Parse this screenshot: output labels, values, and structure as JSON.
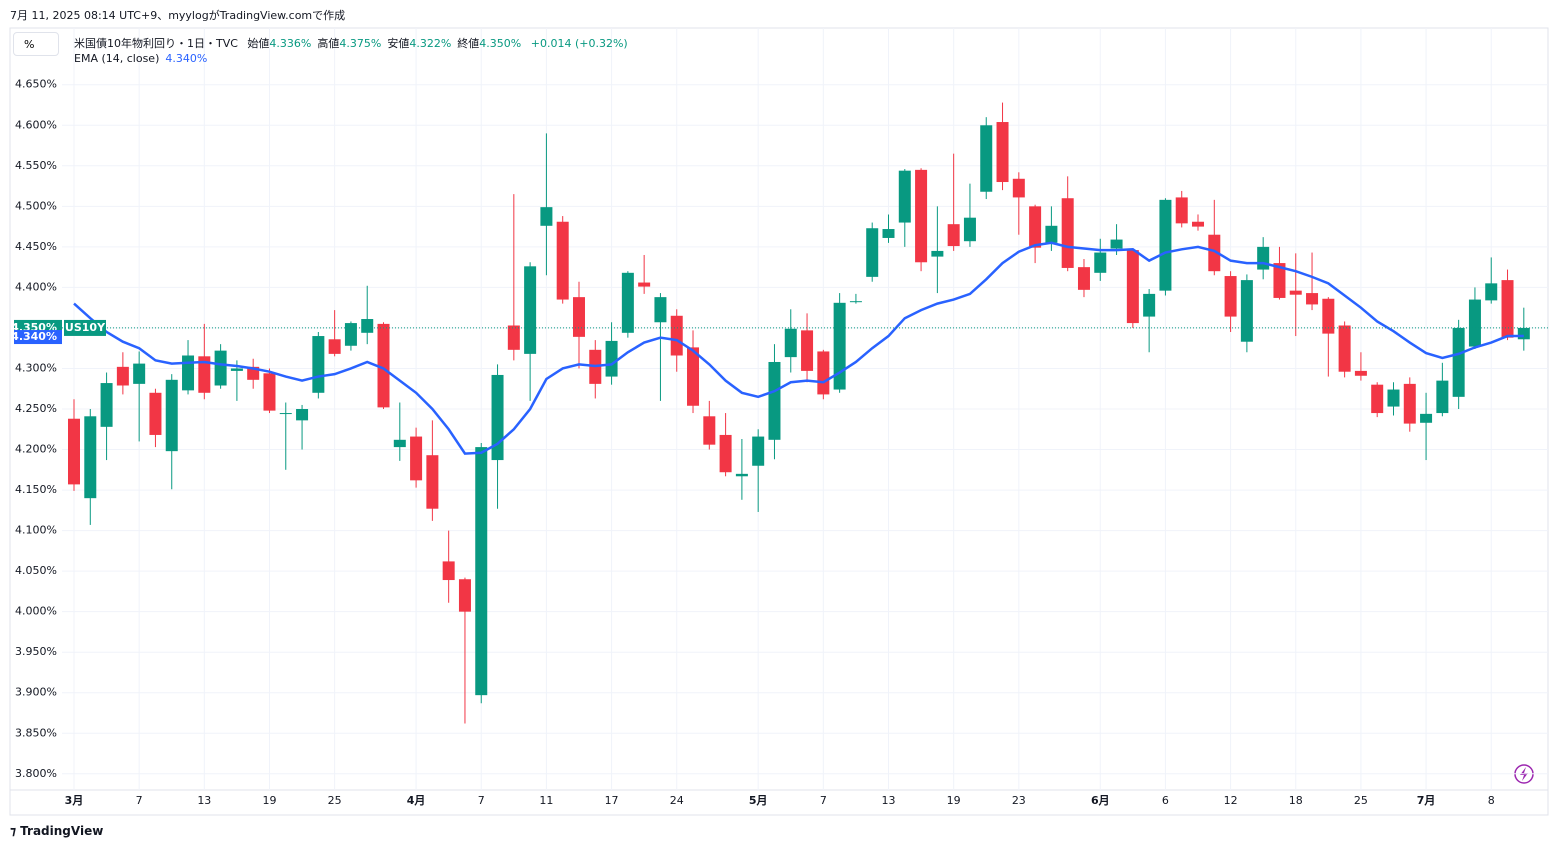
{
  "header": "7月 11, 2025 08:14 UTC+9、myylogがTradingView.comで作成",
  "footer": "TradingView",
  "chart_data": {
    "type": "candlestick",
    "unit_button": "%",
    "symbol_title": "米国債10年物利回り・1日・TVC",
    "legend": [
      {
        "label": "始値",
        "value": "4.336%"
      },
      {
        "label": "高値",
        "value": "4.375%"
      },
      {
        "label": "安値",
        "value": "4.322%"
      },
      {
        "label": "終値",
        "value": "4.350%"
      }
    ],
    "change": "+0.014 (+0.32%)",
    "symbol": "US10Y",
    "last_price_label": "4.350%",
    "up_color": "#089981",
    "down_color": "#f23645",
    "grid": true,
    "categories": [
      "3月",
      null,
      null,
      null,
      "7",
      null,
      null,
      null,
      "13",
      null,
      null,
      null,
      "19",
      null,
      null,
      null,
      "25",
      null,
      null,
      null,
      null,
      "4月",
      null,
      null,
      null,
      "7",
      null,
      null,
      null,
      "11",
      null,
      null,
      null,
      "17",
      null,
      null,
      null,
      "24",
      null,
      null,
      null,
      null,
      "5月",
      null,
      null,
      null,
      "7",
      null,
      null,
      null,
      "13",
      null,
      null,
      null,
      "19",
      null,
      null,
      null,
      "23",
      null,
      null,
      null,
      null,
      "6月",
      null,
      null,
      null,
      "6",
      null,
      null,
      null,
      "12",
      null,
      null,
      null,
      "18",
      null,
      null,
      null,
      "25",
      null,
      null,
      null,
      "7月",
      null,
      null,
      null,
      "8",
      null,
      null
    ],
    "open": [
      4.238,
      4.14,
      4.228,
      4.302,
      4.281,
      4.27,
      4.198,
      4.273,
      4.315,
      4.279,
      4.297,
      4.302,
      4.294,
      4.244,
      4.236,
      4.27,
      4.336,
      4.328,
      4.344,
      4.355,
      4.203,
      4.216,
      4.193,
      4.062,
      4.04,
      3.897,
      4.187,
      4.353,
      4.318,
      4.476,
      4.481,
      4.388,
      4.323,
      4.29,
      4.344,
      4.406,
      4.357,
      4.365,
      4.326,
      4.241,
      4.218,
      4.167,
      4.18,
      4.212,
      4.314,
      4.347,
      4.321,
      4.274,
      4.382,
      4.413,
      4.461,
      4.48,
      4.545,
      4.438,
      4.478,
      4.457,
      4.518,
      4.604,
      4.534,
      4.5,
      4.455,
      4.51,
      4.425,
      4.418,
      4.448,
      4.446,
      4.364,
      4.396,
      4.511,
      4.481,
      4.465,
      4.414,
      4.333,
      4.422,
      4.43,
      4.396,
      4.393,
      4.386,
      4.353,
      4.297,
      4.28,
      4.253,
      4.281,
      4.233,
      4.245,
      4.265,
      4.327,
      4.384,
      4.409,
      4.336
    ],
    "high": [
      4.262,
      4.25,
      4.295,
      4.32,
      4.321,
      4.275,
      4.293,
      4.335,
      4.355,
      4.33,
      4.31,
      4.312,
      4.3,
      4.258,
      4.255,
      4.345,
      4.372,
      4.358,
      4.402,
      4.357,
      4.258,
      4.227,
      4.236,
      4.1,
      4.042,
      4.208,
      4.305,
      4.515,
      4.431,
      4.59,
      4.488,
      4.407,
      4.335,
      4.357,
      4.42,
      4.44,
      4.393,
      4.373,
      4.347,
      4.26,
      4.245,
      4.213,
      4.225,
      4.33,
      4.373,
      4.368,
      4.323,
      4.393,
      4.392,
      4.48,
      4.49,
      4.546,
      4.547,
      4.5,
      4.565,
      4.528,
      4.61,
      4.628,
      4.542,
      4.502,
      4.5,
      4.537,
      4.435,
      4.46,
      4.478,
      4.447,
      4.398,
      4.51,
      4.519,
      4.49,
      4.508,
      4.42,
      4.416,
      4.462,
      4.45,
      4.442,
      4.443,
      4.388,
      4.358,
      4.32,
      4.283,
      4.283,
      4.289,
      4.27,
      4.307,
      4.36,
      4.4,
      4.437,
      4.422,
      4.375
    ],
    "low": [
      4.149,
      4.107,
      4.187,
      4.268,
      4.21,
      4.203,
      4.151,
      4.268,
      4.262,
      4.275,
      4.26,
      4.275,
      4.245,
      4.175,
      4.2,
      4.263,
      4.315,
      4.322,
      4.33,
      4.25,
      4.186,
      4.153,
      4.112,
      4.011,
      3.862,
      3.887,
      4.127,
      4.31,
      4.26,
      4.415,
      4.38,
      4.3,
      4.263,
      4.28,
      4.338,
      4.392,
      4.26,
      4.296,
      4.245,
      4.2,
      4.167,
      4.138,
      4.123,
      4.188,
      4.295,
      4.283,
      4.262,
      4.27,
      4.38,
      4.407,
      4.455,
      4.45,
      4.42,
      4.393,
      4.445,
      4.45,
      4.509,
      4.52,
      4.465,
      4.43,
      4.445,
      4.42,
      4.388,
      4.408,
      4.44,
      4.35,
      4.32,
      4.39,
      4.474,
      4.47,
      4.415,
      4.345,
      4.32,
      4.41,
      4.385,
      4.34,
      4.372,
      4.29,
      4.289,
      4.285,
      4.24,
      4.242,
      4.222,
      4.187,
      4.241,
      4.25,
      4.324,
      4.38,
      4.335,
      4.322
    ],
    "close": [
      4.157,
      4.241,
      4.282,
      4.279,
      4.306,
      4.218,
      4.286,
      4.316,
      4.27,
      4.322,
      4.3,
      4.286,
      4.248,
      4.245,
      4.25,
      4.34,
      4.318,
      4.356,
      4.361,
      4.252,
      4.212,
      4.162,
      4.127,
      4.039,
      4.0,
      4.203,
      4.292,
      4.323,
      4.426,
      4.499,
      4.385,
      4.339,
      4.281,
      4.334,
      4.418,
      4.401,
      4.388,
      4.316,
      4.254,
      4.206,
      4.172,
      4.17,
      4.216,
      4.308,
      4.349,
      4.297,
      4.268,
      4.381,
      4.383,
      4.473,
      4.472,
      4.544,
      4.431,
      4.445,
      4.451,
      4.486,
      4.6,
      4.53,
      4.511,
      4.449,
      4.476,
      4.424,
      4.397,
      4.443,
      4.459,
      4.356,
      4.392,
      4.508,
      4.479,
      4.475,
      4.42,
      4.364,
      4.409,
      4.45,
      4.387,
      4.391,
      4.379,
      4.343,
      4.296,
      4.291,
      4.245,
      4.274,
      4.232,
      4.244,
      4.285,
      4.35,
      4.385,
      4.405,
      4.338,
      4.35
    ],
    "series": [
      {
        "name": "EMA (14, close)",
        "color": "#2962ff",
        "value_label": "4.340%",
        "values": [
          4.38,
          4.362,
          4.345,
          4.333,
          4.325,
          4.31,
          4.306,
          4.307,
          4.308,
          4.305,
          4.303,
          4.3,
          4.296,
          4.29,
          4.285,
          4.29,
          4.293,
          4.3,
          4.308,
          4.3,
          4.285,
          4.27,
          4.25,
          4.225,
          4.195,
          4.196,
          4.207,
          4.225,
          4.25,
          4.287,
          4.3,
          4.305,
          4.303,
          4.305,
          4.32,
          4.332,
          4.338,
          4.335,
          4.322,
          4.305,
          4.285,
          4.27,
          4.265,
          4.272,
          4.283,
          4.285,
          4.283,
          4.295,
          4.308,
          4.325,
          4.34,
          4.362,
          4.372,
          4.38,
          4.385,
          4.392,
          4.41,
          4.43,
          4.444,
          4.452,
          4.455,
          4.45,
          4.448,
          4.446,
          4.446,
          4.447,
          4.433,
          4.443,
          4.447,
          4.45,
          4.445,
          4.433,
          4.43,
          4.43,
          4.425,
          4.42,
          4.413,
          4.405,
          4.39,
          4.375,
          4.358,
          4.346,
          4.332,
          4.319,
          4.313,
          4.318,
          4.326,
          4.332,
          4.34,
          4.34
        ]
      }
    ],
    "ylim": [
      3.78,
      4.72
    ],
    "yticks": [
      {
        "value": 3.8,
        "label": "3.800%"
      },
      {
        "value": 3.85,
        "label": "3.850%"
      },
      {
        "value": 3.9,
        "label": "3.900%"
      },
      {
        "value": 3.95,
        "label": "3.950%"
      },
      {
        "value": 4.0,
        "label": "4.000%"
      },
      {
        "value": 4.05,
        "label": "4.050%"
      },
      {
        "value": 4.1,
        "label": "4.100%"
      },
      {
        "value": 4.15,
        "label": "4.150%"
      },
      {
        "value": 4.2,
        "label": "4.200%"
      },
      {
        "value": 4.25,
        "label": "4.250%"
      },
      {
        "value": 4.3,
        "label": "4.300%"
      },
      {
        "value": 4.35,
        "label": "4.350%"
      },
      {
        "value": 4.4,
        "label": "4.400%"
      },
      {
        "value": 4.45,
        "label": "4.450%"
      },
      {
        "value": 4.5,
        "label": "4.500%"
      },
      {
        "value": 4.55,
        "label": "4.550%"
      },
      {
        "value": 4.6,
        "label": "4.600%"
      },
      {
        "value": 4.65,
        "label": "4.650%"
      }
    ]
  }
}
